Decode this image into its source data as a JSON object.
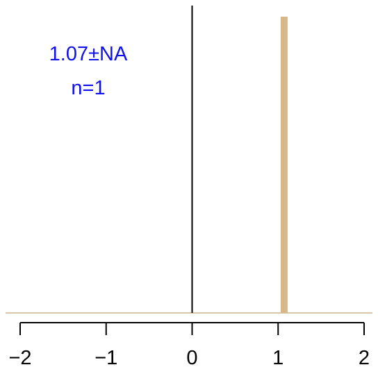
{
  "chart_data": {
    "type": "bar",
    "title": "",
    "xlabel": "",
    "ylabel": "",
    "xlim": [
      -2,
      2
    ],
    "x_ticks": [
      -2,
      -1,
      0,
      1,
      2
    ],
    "x_tick_labels": [
      "−2",
      "−1",
      "0",
      "1",
      "2"
    ],
    "x": [
      1.07
    ],
    "values": [
      1
    ],
    "grid": false,
    "annotation": {
      "mean_line": "1.07±NA",
      "n_line": "n=1"
    },
    "reference_line_x": 0
  },
  "colors": {
    "bar": "#d8b88a",
    "baseline": "#d8c8a8",
    "annotation": "#1010ee",
    "axis": "#000000"
  }
}
